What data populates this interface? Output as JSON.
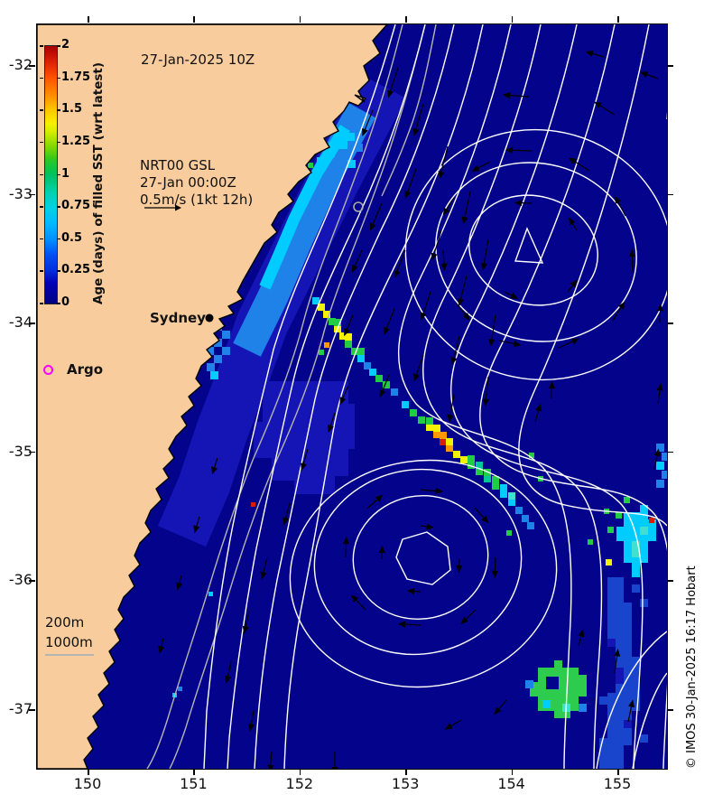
{
  "header": {
    "datetime_label": "27-Jan-2025 10Z"
  },
  "colorbar": {
    "title": "Age (days) of filled SST (wrt latest)",
    "tick_labels": [
      "2",
      "1.75",
      "1.5",
      "1.25",
      "1",
      "0.75",
      "0.5",
      "0.25",
      "0"
    ],
    "min": 0,
    "max": 2
  },
  "velocity_key": {
    "model_label": "NRT00 GSL",
    "time_label": "27-Jan 00:00Z",
    "scale_label": "0.5m/s (1kt 12h)"
  },
  "place_markers": {
    "sydney_label": "Sydney",
    "argo_label": "Argo"
  },
  "isobath_key": {
    "line1": "200m",
    "line2": "1000m"
  },
  "axes": {
    "x_tick_labels": [
      "150",
      "151",
      "152",
      "153",
      "154",
      "155"
    ],
    "y_tick_labels": [
      "-32",
      "-33",
      "-34",
      "-35",
      "-36",
      "-37"
    ]
  },
  "credit": "© IMOS 30-Jan-2025 16:17 Hobart",
  "colors": {
    "land": "#f8cc9c",
    "ocean": "#03038c",
    "age_025": "#1515b5",
    "age_04": "#1e82e8",
    "age_05": "#00ccff",
    "age_075": "#00c896",
    "age_1": "#22cc44",
    "age_125": "#f2f200",
    "age_15": "#ff9900",
    "age_175": "#d81e00",
    "contour_gsl": "#ffffff",
    "contour_bathy": "#b4b4b4",
    "argo_marker": "#ff00ff"
  }
}
